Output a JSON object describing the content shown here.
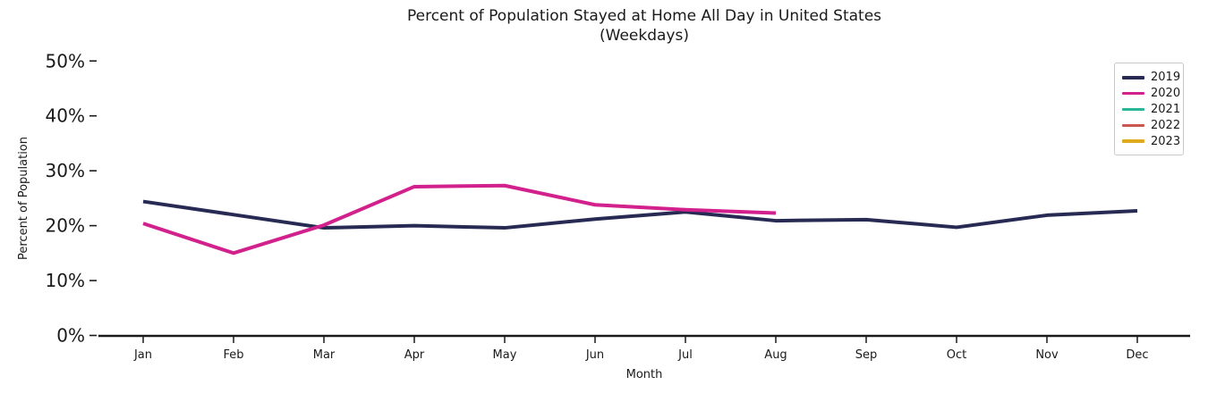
{
  "window": {
    "background": "#ffffff"
  },
  "text_color": "#1a1a1a",
  "axis_color": "#1a1a1a",
  "chart_data": {
    "type": "line",
    "title": "Percent of Population Stayed at Home All Day in United States",
    "subtitle": "(Weekdays)",
    "xlabel": "Month",
    "ylabel": "Percent of Population",
    "categories": [
      "Jan",
      "Feb",
      "Mar",
      "Apr",
      "May",
      "Jun",
      "Jul",
      "Aug",
      "Sep",
      "Oct",
      "Nov",
      "Dec"
    ],
    "y_tick_values": [
      0,
      10,
      20,
      30,
      40,
      50
    ],
    "y_tick_labels": [
      "0%",
      "10%",
      "20%",
      "30%",
      "40%",
      "50%"
    ],
    "ylim": [
      0,
      52.5
    ],
    "grid": false,
    "legend_position": "upper-right",
    "series": [
      {
        "name": "2019",
        "color": "#272b54",
        "values": [
          24.4,
          22.0,
          19.6,
          20.0,
          19.6,
          21.2,
          22.5,
          20.9,
          21.1,
          19.7,
          21.9,
          22.7
        ]
      },
      {
        "name": "2020",
        "color": "#d2208c",
        "values": [
          20.4,
          15.0,
          20.1,
          27.1,
          27.3,
          23.8,
          22.9,
          22.3
        ]
      },
      {
        "name": "2021",
        "color": "#2bb597",
        "values": []
      },
      {
        "name": "2022",
        "color": "#c9564f",
        "values": []
      },
      {
        "name": "2023",
        "color": "#dfa920",
        "values": []
      }
    ]
  }
}
